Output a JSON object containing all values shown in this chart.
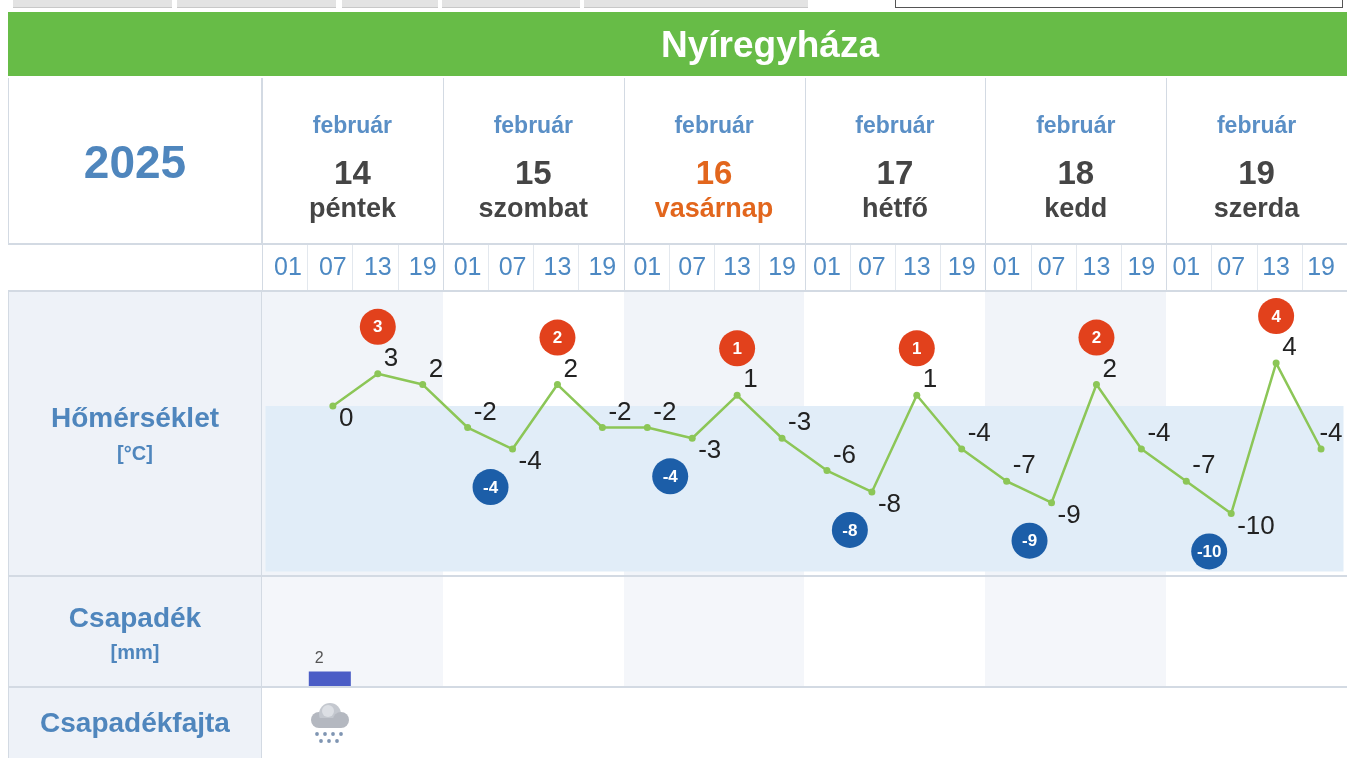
{
  "chart_data": [
    {
      "type": "line",
      "title": "Nyíregyháza",
      "subtitle": "2025",
      "ylabel": "Hőmérséklet [°C]",
      "categories": [
        "01",
        "07",
        "13",
        "19",
        "01",
        "07",
        "13",
        "19",
        "01",
        "07",
        "13",
        "19",
        "01",
        "07",
        "13",
        "19",
        "01",
        "07",
        "13",
        "19",
        "01",
        "07",
        "13",
        "19"
      ],
      "values": [
        null,
        0,
        3,
        2,
        -2,
        -4,
        2,
        -2,
        -2,
        -3,
        1,
        -3,
        -6,
        -8,
        1,
        -4,
        -7,
        -9,
        2,
        -4,
        -7,
        -10,
        4,
        -4
      ],
      "color": "#8cc657",
      "marker": "circle",
      "data_labels": true,
      "ylim": [
        -15.4,
        10.8
      ],
      "tick_labels": "x",
      "bands": [
        {
          "axis": "y",
          "from": -15.4,
          "to": 0,
          "color": "#e1edf8"
        }
      ],
      "annotations": [
        "február 14 péntek",
        "február 15 szombat",
        "február 16 vasárnap",
        "február 17 hétfő",
        "február 18 kedd",
        "február 19 szerda",
        "3",
        "-4",
        "2",
        "-4",
        "1",
        "-8",
        "1",
        "-9",
        "2",
        "-10",
        "4"
      ]
    },
    {
      "type": "bar",
      "ylabel": "Csapadék [mm]",
      "categories": [
        "01",
        "07",
        "13",
        "19",
        "01",
        "07",
        "13",
        "19",
        "01",
        "07",
        "13",
        "19",
        "01",
        "07",
        "13",
        "19",
        "01",
        "07",
        "13",
        "19",
        "01",
        "07",
        "13",
        "19"
      ],
      "values": [
        null,
        2,
        null,
        null,
        null,
        null,
        null,
        null,
        null,
        null,
        null,
        null,
        null,
        null,
        null,
        null,
        null,
        null,
        null,
        null,
        null,
        null,
        null,
        null
      ],
      "color": "#4b5dc6",
      "data_labels": true,
      "ylim": [
        0,
        15
      ],
      "tick_labels": false,
      "annotations": [
        "Csapadékfajta"
      ]
    }
  ]
}
